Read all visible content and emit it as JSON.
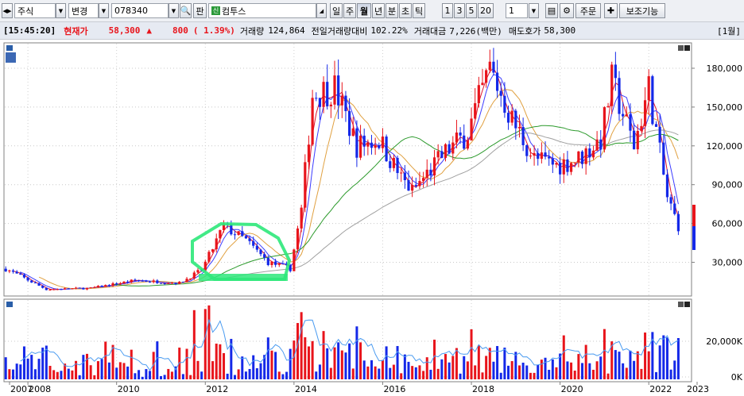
{
  "toolbar": {
    "market": "주식",
    "change_label": "변경",
    "code": "078340",
    "pan_label": "판",
    "sin_badge": "신",
    "stock_name": "컴투스",
    "periods": [
      "일",
      "주",
      "월",
      "년",
      "분",
      "초",
      "틱"
    ],
    "active_period": "월",
    "counts": [
      "1",
      "3",
      "5",
      "20"
    ],
    "count_value": "1",
    "order_label": "주문",
    "aux_label": "보조기능"
  },
  "info": {
    "time": "[15:45:20]",
    "price_label": "현재가",
    "price": "58,300",
    "change_arrow": "▲",
    "change": "800",
    "change_pct": "( 1.39%)",
    "volume_label": "거래량",
    "volume": "124,864",
    "prev_ratio_label": "전일거래량대비",
    "prev_ratio": "102.22%",
    "amount_label": "거래대금",
    "amount": "7,226(백만)",
    "ask_label": "매도호가",
    "ask": "58,300",
    "period_tag": "[1월]"
  },
  "chart_data": {
    "type": "candlestick",
    "price_axis_ticks": [
      "180,000",
      "150,000",
      "120,000",
      "90,000",
      "60,000",
      "30,000"
    ],
    "volume_axis_ticks": [
      "20,000K",
      "0K"
    ],
    "x_ticks": [
      "2007",
      "2008",
      "2010",
      "2012",
      "2014",
      "2016",
      "2018",
      "2020",
      "2022",
      "2023"
    ],
    "ylim": [
      0,
      195000
    ],
    "colors": {
      "up": "#e8141b",
      "down": "#1428e8",
      "ma5": "#e0142c",
      "ma10": "#3c3cff",
      "ma20": "#e0a040",
      "ma60": "#2c9a2c",
      "ma120": "#a0a0a0",
      "volume_ma": "#4a9bf0",
      "highlight": "#2ee87a"
    },
    "close_points": [
      [
        "2007-07",
        25000
      ],
      [
        "2008-06",
        9000
      ],
      [
        "2009-06",
        10000
      ],
      [
        "2010-06",
        16000
      ],
      [
        "2011-06",
        14000
      ],
      [
        "2011-12",
        24000
      ],
      [
        "2012-06",
        58000
      ],
      [
        "2012-12",
        47000
      ],
      [
        "2013-06",
        30000
      ],
      [
        "2013-12",
        25000
      ],
      [
        "2014-03",
        70000
      ],
      [
        "2014-06",
        160000
      ],
      [
        "2014-12",
        165000
      ],
      [
        "2015-06",
        120000
      ],
      [
        "2015-12",
        125000
      ],
      [
        "2016-06",
        95000
      ],
      [
        "2016-09",
        85000
      ],
      [
        "2017-06",
        115000
      ],
      [
        "2017-12",
        130000
      ],
      [
        "2018-06",
        180000
      ],
      [
        "2018-12",
        140000
      ],
      [
        "2019-06",
        110000
      ],
      [
        "2019-12",
        105000
      ],
      [
        "2020-06",
        110000
      ],
      [
        "2020-12",
        125000
      ],
      [
        "2021-03",
        170000
      ],
      [
        "2021-09",
        120000
      ],
      [
        "2022-01",
        165000
      ],
      [
        "2022-06",
        80000
      ],
      [
        "2022-09",
        58300
      ]
    ]
  }
}
